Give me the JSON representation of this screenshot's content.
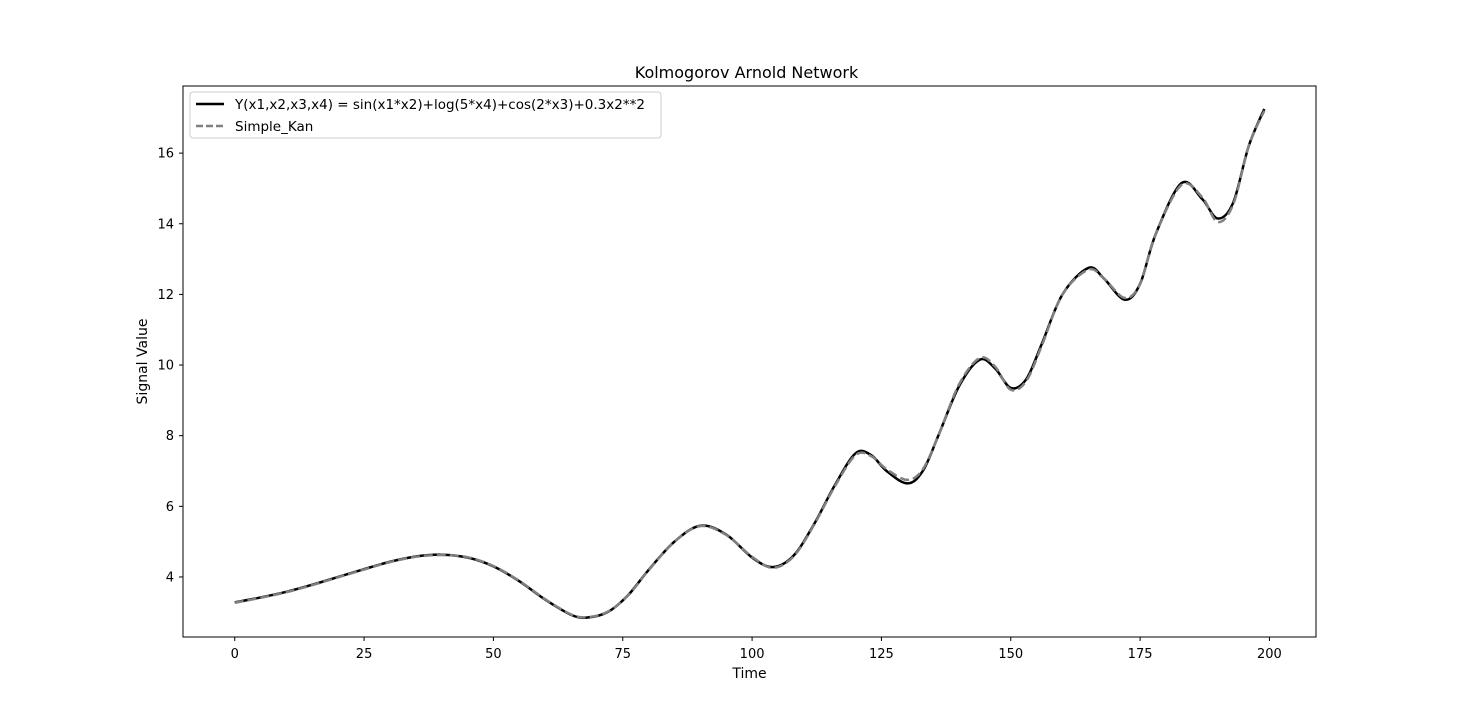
{
  "chart_data": {
    "type": "line",
    "title": "Kolmogorov Arnold Network",
    "xlabel": "Time",
    "ylabel": "Signal Value",
    "xlim": [
      -10,
      209
    ],
    "ylim": [
      2.3,
      17.9
    ],
    "xticks": [
      0,
      25,
      50,
      75,
      100,
      125,
      150,
      175,
      200
    ],
    "yticks": [
      4,
      6,
      8,
      10,
      12,
      14,
      16
    ],
    "grid": false,
    "legend_position": "top-left",
    "series": [
      {
        "name": "Y(x1,x2,x3,x4) = sin(x1*x2)+log(5*x4)+cos(2*x3)+0.3x2**2",
        "color": "#000000",
        "style": "solid",
        "x": [
          0,
          5,
          10,
          15,
          20,
          25,
          30,
          35,
          40,
          45,
          50,
          55,
          60,
          65,
          68,
          72,
          76,
          80,
          85,
          90,
          95,
          100,
          104,
          108,
          112,
          116,
          120,
          123,
          126,
          130,
          133,
          136,
          140,
          144,
          147,
          150,
          153,
          156,
          160,
          165,
          168,
          172,
          175,
          178,
          183,
          187,
          190,
          193,
          196,
          199
        ],
        "y": [
          3.28,
          3.42,
          3.58,
          3.78,
          4.0,
          4.22,
          4.43,
          4.58,
          4.63,
          4.55,
          4.3,
          3.88,
          3.36,
          2.93,
          2.85,
          3.0,
          3.48,
          4.2,
          5.0,
          5.45,
          5.2,
          4.55,
          4.28,
          4.6,
          5.5,
          6.6,
          7.5,
          7.45,
          7.0,
          6.65,
          7.0,
          8.0,
          9.4,
          10.15,
          9.9,
          9.35,
          9.6,
          10.6,
          12.0,
          12.75,
          12.45,
          11.85,
          12.3,
          13.7,
          15.15,
          14.7,
          14.15,
          14.6,
          16.2,
          17.25
        ]
      },
      {
        "name": "Simple_Kan",
        "color": "#808080",
        "style": "dashed",
        "x": [
          0,
          5,
          10,
          15,
          20,
          25,
          30,
          35,
          40,
          45,
          50,
          55,
          60,
          65,
          68,
          72,
          76,
          80,
          85,
          90,
          95,
          100,
          104,
          108,
          112,
          116,
          120,
          123,
          126,
          130,
          133,
          136,
          140,
          144,
          147,
          150,
          153,
          156,
          160,
          165,
          168,
          172,
          175,
          178,
          183,
          187,
          190,
          193,
          196,
          199
        ],
        "y": [
          3.27,
          3.41,
          3.57,
          3.77,
          3.99,
          4.21,
          4.42,
          4.57,
          4.62,
          4.56,
          4.31,
          3.89,
          3.37,
          2.94,
          2.86,
          3.01,
          3.47,
          4.19,
          5.0,
          5.44,
          5.19,
          4.57,
          4.26,
          4.58,
          5.48,
          6.57,
          7.45,
          7.42,
          7.05,
          6.75,
          7.05,
          8.0,
          9.45,
          10.2,
          9.95,
          9.3,
          9.55,
          10.55,
          12.0,
          12.7,
          12.45,
          11.9,
          12.3,
          13.7,
          15.1,
          14.75,
          14.05,
          14.55,
          16.2,
          17.2
        ]
      }
    ]
  }
}
